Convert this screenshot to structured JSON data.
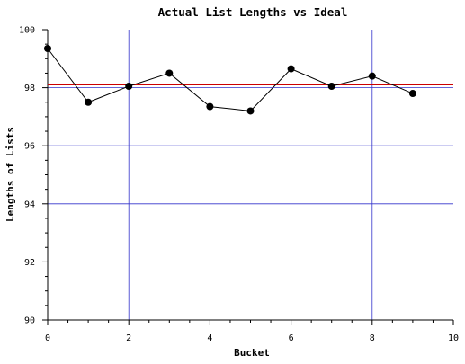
{
  "chart_data": {
    "type": "line",
    "title": "Actual List Lengths vs Ideal",
    "xlabel": "Bucket",
    "ylabel": "Lengths of Lists",
    "xlim": [
      0,
      10
    ],
    "ylim": [
      90,
      100
    ],
    "x_ticks": [
      "0",
      "2",
      "4",
      "6",
      "8",
      "10"
    ],
    "y_ticks": [
      "90",
      "92",
      "94",
      "96",
      "98",
      "100"
    ],
    "grid": true,
    "legend": "none",
    "series": [
      {
        "x": [
          0,
          1,
          2,
          3,
          4,
          5,
          6,
          7,
          8,
          9
        ],
        "values": [
          99.35,
          97.5,
          98.05,
          98.5,
          97.35,
          97.2,
          98.65,
          98.05,
          98.4,
          97.8
        ],
        "color": "#000000"
      }
    ],
    "reference_line": {
      "y": 98.1,
      "color": "#cc0000"
    },
    "grid_color": "#3333cc"
  }
}
